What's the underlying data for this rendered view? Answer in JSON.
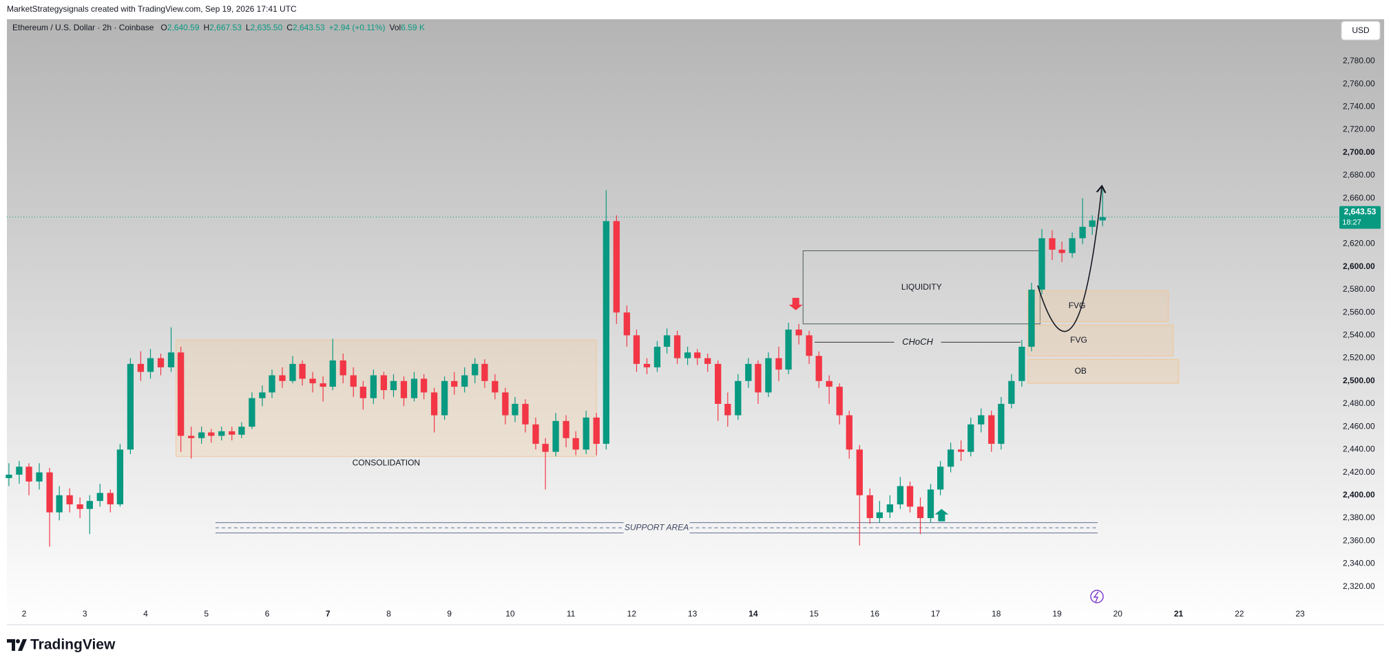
{
  "credit": "MarketStrategysignals created with TradingView.com, Sep 19, 2026 17:41 UTC",
  "brand": "TradingView",
  "currency": "USD",
  "chart_data": {
    "type": "candlestick",
    "legend": {
      "symbol": "Ethereum / U.S. Dollar · 2h · Coinbase",
      "fields": [
        {
          "key": "O",
          "value": "2,640.59"
        },
        {
          "key": "H",
          "value": "2,667.53"
        },
        {
          "key": "L",
          "value": "2,635.50"
        },
        {
          "key": "C",
          "value": "2,643.53"
        }
      ],
      "change": "+2.94 (+0.11%)",
      "volume_key": "Vol",
      "volume": "6.59 K"
    },
    "up_color": "#089981",
    "down_color": "#f23645",
    "x": [
      1.75,
      1.92,
      2.08,
      2.25,
      2.42,
      2.58,
      2.75,
      2.92,
      3.08,
      3.25,
      3.42,
      3.58,
      3.75,
      3.92,
      4.08,
      4.25,
      4.42,
      4.58,
      4.75,
      4.92,
      5.08,
      5.25,
      5.42,
      5.58,
      5.75,
      5.92,
      6.08,
      6.25,
      6.42,
      6.58,
      6.75,
      6.92,
      7.08,
      7.25,
      7.42,
      7.58,
      7.75,
      7.92,
      8.08,
      8.25,
      8.42,
      8.58,
      8.75,
      8.92,
      9.08,
      9.25,
      9.42,
      9.58,
      9.75,
      9.92,
      10.08,
      10.25,
      10.42,
      10.58,
      10.75,
      10.92,
      11.08,
      11.25,
      11.42,
      11.58,
      11.75,
      11.92,
      12.08,
      12.25,
      12.42,
      12.58,
      12.75,
      12.92,
      13.08,
      13.25,
      13.42,
      13.58,
      13.75,
      13.92,
      14.08,
      14.25,
      14.42,
      14.58,
      14.75,
      14.92,
      15.08,
      15.25,
      15.42,
      15.58,
      15.75,
      15.92,
      16.08,
      16.25,
      16.42,
      16.58,
      16.75,
      16.92,
      17.08,
      17.25,
      17.42,
      17.58,
      17.75,
      17.92,
      18.08,
      18.25,
      18.42,
      18.58,
      18.75,
      18.92,
      19.08,
      19.25,
      19.42,
      19.58,
      19.75
    ],
    "candles": [
      [
        2415,
        2428,
        2408,
        2418
      ],
      [
        2418,
        2430,
        2410,
        2425
      ],
      [
        2425,
        2428,
        2400,
        2412
      ],
      [
        2412,
        2428,
        2405,
        2420
      ],
      [
        2420,
        2424,
        2355,
        2385
      ],
      [
        2385,
        2408,
        2378,
        2400
      ],
      [
        2400,
        2406,
        2385,
        2392
      ],
      [
        2392,
        2398,
        2380,
        2388
      ],
      [
        2388,
        2400,
        2366,
        2395
      ],
      [
        2395,
        2410,
        2390,
        2402
      ],
      [
        2402,
        2405,
        2385,
        2392
      ],
      [
        2392,
        2445,
        2390,
        2440
      ],
      [
        2440,
        2520,
        2436,
        2515
      ],
      [
        2515,
        2526,
        2500,
        2508
      ],
      [
        2508,
        2528,
        2502,
        2520
      ],
      [
        2520,
        2524,
        2505,
        2512
      ],
      [
        2512,
        2547,
        2508,
        2525
      ],
      [
        2525,
        2530,
        2438,
        2452
      ],
      [
        2452,
        2460,
        2432,
        2450
      ],
      [
        2450,
        2460,
        2445,
        2455
      ],
      [
        2455,
        2458,
        2446,
        2452
      ],
      [
        2452,
        2460,
        2448,
        2456
      ],
      [
        2456,
        2460,
        2448,
        2453
      ],
      [
        2453,
        2464,
        2450,
        2460
      ],
      [
        2460,
        2490,
        2458,
        2485
      ],
      [
        2485,
        2496,
        2478,
        2490
      ],
      [
        2490,
        2510,
        2485,
        2505
      ],
      [
        2505,
        2512,
        2494,
        2500
      ],
      [
        2500,
        2522,
        2498,
        2515
      ],
      [
        2515,
        2518,
        2496,
        2502
      ],
      [
        2502,
        2508,
        2490,
        2498
      ],
      [
        2498,
        2504,
        2482,
        2495
      ],
      [
        2495,
        2537,
        2492,
        2518
      ],
      [
        2518,
        2524,
        2498,
        2505
      ],
      [
        2505,
        2512,
        2486,
        2495
      ],
      [
        2495,
        2500,
        2475,
        2485
      ],
      [
        2485,
        2510,
        2480,
        2505
      ],
      [
        2505,
        2508,
        2484,
        2492
      ],
      [
        2492,
        2506,
        2486,
        2500
      ],
      [
        2500,
        2504,
        2478,
        2485
      ],
      [
        2485,
        2508,
        2482,
        2502
      ],
      [
        2502,
        2506,
        2484,
        2490
      ],
      [
        2490,
        2494,
        2455,
        2470
      ],
      [
        2470,
        2504,
        2466,
        2500
      ],
      [
        2500,
        2508,
        2488,
        2495
      ],
      [
        2495,
        2512,
        2490,
        2505
      ],
      [
        2505,
        2520,
        2498,
        2515
      ],
      [
        2515,
        2519,
        2494,
        2500
      ],
      [
        2500,
        2506,
        2484,
        2490
      ],
      [
        2490,
        2494,
        2462,
        2470
      ],
      [
        2470,
        2486,
        2464,
        2480
      ],
      [
        2480,
        2484,
        2455,
        2462
      ],
      [
        2462,
        2468,
        2440,
        2445
      ],
      [
        2445,
        2450,
        2405,
        2438
      ],
      [
        2438,
        2472,
        2434,
        2465
      ],
      [
        2465,
        2470,
        2442,
        2450
      ],
      [
        2450,
        2456,
        2435,
        2440
      ],
      [
        2440,
        2474,
        2436,
        2468
      ],
      [
        2468,
        2472,
        2435,
        2445
      ],
      [
        2445,
        2667,
        2440,
        2640
      ],
      [
        2640,
        2645,
        2550,
        2560
      ],
      [
        2560,
        2566,
        2530,
        2540
      ],
      [
        2540,
        2545,
        2508,
        2515
      ],
      [
        2515,
        2520,
        2506,
        2512
      ],
      [
        2512,
        2535,
        2508,
        2530
      ],
      [
        2530,
        2546,
        2524,
        2540
      ],
      [
        2540,
        2544,
        2515,
        2520
      ],
      [
        2520,
        2530,
        2514,
        2525
      ],
      [
        2525,
        2528,
        2514,
        2520
      ],
      [
        2520,
        2524,
        2508,
        2515
      ],
      [
        2515,
        2518,
        2465,
        2480
      ],
      [
        2480,
        2490,
        2460,
        2470
      ],
      [
        2470,
        2506,
        2466,
        2500
      ],
      [
        2500,
        2520,
        2494,
        2515
      ],
      [
        2515,
        2518,
        2480,
        2490
      ],
      [
        2490,
        2525,
        2486,
        2520
      ],
      [
        2520,
        2530,
        2500,
        2510
      ],
      [
        2510,
        2551,
        2506,
        2545
      ],
      [
        2545,
        2550,
        2532,
        2540
      ],
      [
        2540,
        2544,
        2515,
        2522
      ],
      [
        2522,
        2526,
        2494,
        2500
      ],
      [
        2500,
        2505,
        2480,
        2495
      ],
      [
        2495,
        2498,
        2462,
        2470
      ],
      [
        2470,
        2474,
        2432,
        2440
      ],
      [
        2440,
        2444,
        2356,
        2400
      ],
      [
        2400,
        2406,
        2375,
        2380
      ],
      [
        2380,
        2395,
        2376,
        2385
      ],
      [
        2385,
        2400,
        2380,
        2392
      ],
      [
        2392,
        2416,
        2388,
        2408
      ],
      [
        2408,
        2412,
        2385,
        2390
      ],
      [
        2390,
        2398,
        2366,
        2380
      ],
      [
        2380,
        2410,
        2376,
        2405
      ],
      [
        2405,
        2430,
        2400,
        2425
      ],
      [
        2425,
        2446,
        2420,
        2440
      ],
      [
        2440,
        2448,
        2430,
        2438
      ],
      [
        2438,
        2468,
        2434,
        2462
      ],
      [
        2462,
        2476,
        2455,
        2470
      ],
      [
        2470,
        2474,
        2438,
        2445
      ],
      [
        2445,
        2486,
        2440,
        2480
      ],
      [
        2480,
        2506,
        2476,
        2500
      ],
      [
        2500,
        2536,
        2495,
        2530
      ],
      [
        2530,
        2586,
        2526,
        2580
      ],
      [
        2580,
        2633,
        2576,
        2625
      ],
      [
        2625,
        2632,
        2606,
        2615
      ],
      [
        2615,
        2622,
        2604,
        2612
      ],
      [
        2612,
        2630,
        2608,
        2625
      ],
      [
        2625,
        2660,
        2620,
        2635
      ],
      [
        2635,
        2645,
        2628,
        2640.59
      ],
      [
        2640.59,
        2667.53,
        2635.5,
        2643.53
      ]
    ],
    "xlim": [
      1.717,
      23.51
    ],
    "xticks": [
      2,
      3,
      4,
      5,
      6,
      7,
      8,
      9,
      10,
      11,
      12,
      13,
      14,
      15,
      16,
      17,
      18,
      19,
      20,
      21,
      22,
      23
    ],
    "ylim": [
      2303.5,
      2816.7
    ],
    "yticks": [
      {
        "value": 2320,
        "label": "2,320.00"
      },
      {
        "value": 2340,
        "label": "2,340.00"
      },
      {
        "value": 2360,
        "label": "2,360.00"
      },
      {
        "value": 2380,
        "label": "2,380.00"
      },
      {
        "value": 2400,
        "label": "2,400.00"
      },
      {
        "value": 2420,
        "label": "2,420.00"
      },
      {
        "value": 2440,
        "label": "2,440.00"
      },
      {
        "value": 2460,
        "label": "2,460.00"
      },
      {
        "value": 2480,
        "label": "2,480.00"
      },
      {
        "value": 2500,
        "label": "2,500.00"
      },
      {
        "value": 2520,
        "label": "2,520.00"
      },
      {
        "value": 2540,
        "label": "2,540.00"
      },
      {
        "value": 2560,
        "label": "2,560.00"
      },
      {
        "value": 2580,
        "label": "2,580.00"
      },
      {
        "value": 2600,
        "label": "2,600.00"
      },
      {
        "value": 2620,
        "label": "2,620.00"
      },
      {
        "value": 2640,
        "label": "2,640.00"
      },
      {
        "value": 2660,
        "label": "2,660.00"
      },
      {
        "value": 2680,
        "label": "2,680.00"
      },
      {
        "value": 2700,
        "label": "2,700.00"
      },
      {
        "value": 2720,
        "label": "2,720.00"
      },
      {
        "value": 2740,
        "label": "2,740.00"
      },
      {
        "value": 2760,
        "label": "2,760.00"
      },
      {
        "value": 2780,
        "label": "2,780.00"
      }
    ],
    "last_price": {
      "value": 2643.53,
      "label": "2,643.53"
    },
    "countdown": "18:27",
    "consolidation": {
      "label": "CONSOLIDATION",
      "x": [
        4.5,
        11.42
      ],
      "y": [
        2434,
        2536
      ]
    },
    "support": {
      "label": "SUPPORT AREA",
      "x": [
        5.15,
        19.67
      ],
      "y": [
        2367,
        2376
      ]
    },
    "liquidity": {
      "label": "LIQUIDITY",
      "x": [
        14.82,
        18.72
      ],
      "y": [
        2550,
        2614
      ]
    },
    "choch": {
      "label": "CHoCH",
      "x": [
        15.01,
        18.4
      ],
      "y": 2534
    },
    "zones": [
      {
        "label": "FVG",
        "x": [
          18.52,
          20.83
        ],
        "y": [
          2552,
          2579
        ]
      },
      {
        "label": "FVG",
        "x": [
          18.52,
          20.91
        ],
        "y": [
          2522,
          2549
        ]
      },
      {
        "label": "OB",
        "x": [
          18.52,
          21.0
        ],
        "y": [
          2498,
          2519
        ]
      }
    ],
    "arrows": [
      {
        "x": 14.7,
        "y": 2562,
        "direction": "down",
        "color": "#f23645"
      },
      {
        "x": 17.1,
        "y": 2388,
        "direction": "up",
        "color": "#089981"
      }
    ]
  }
}
